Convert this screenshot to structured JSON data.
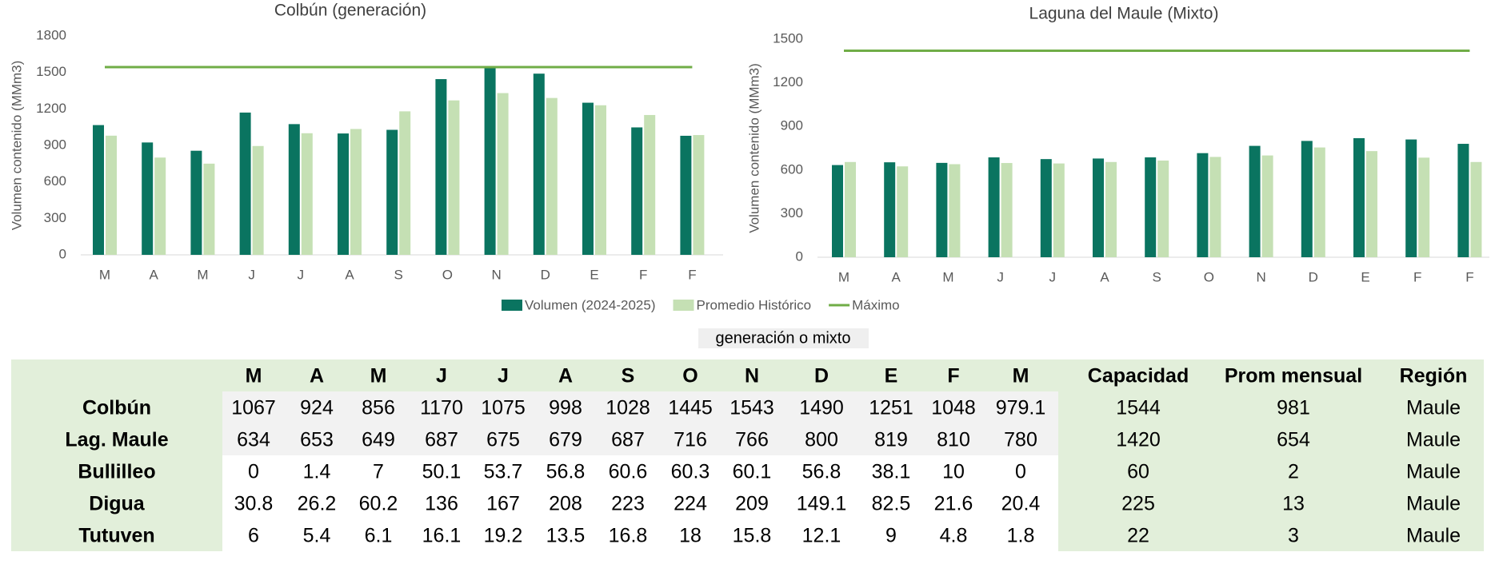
{
  "chart_data": [
    {
      "type": "bar",
      "title": "Colbún (generación)",
      "ylabel": "Volumen contenido (MMm3)",
      "categories": [
        "M",
        "A",
        "M",
        "J",
        "J",
        "A",
        "S",
        "O",
        "N",
        "D",
        "E",
        "F",
        "F"
      ],
      "series": [
        {
          "name": "Volumen (2024-2025)",
          "color": "#0a7460",
          "values": [
            1067,
            924,
            856,
            1170,
            1075,
            998,
            1028,
            1445,
            1543,
            1490,
            1251,
            1048,
            979.1
          ]
        },
        {
          "name": "Promedio Histórico",
          "color": "#c5e0b4",
          "values": [
            980,
            800,
            750,
            895,
            1000,
            1035,
            1180,
            1270,
            1330,
            1290,
            1230,
            1150,
            985
          ]
        },
        {
          "name": "Máximo",
          "color": "#70ad47",
          "type": "line",
          "values": [
            1544,
            1544,
            1544,
            1544,
            1544,
            1544,
            1544,
            1544,
            1544,
            1544,
            1544,
            1544,
            1544
          ]
        }
      ],
      "ylim": [
        0,
        1800
      ],
      "yticks": [
        0,
        300,
        600,
        900,
        1200,
        1500,
        1800
      ]
    },
    {
      "type": "bar",
      "title": "Laguna del Maule (Mixto)",
      "ylabel": "Volumen contenido (MMm3)",
      "categories": [
        "M",
        "A",
        "M",
        "J",
        "J",
        "A",
        "S",
        "O",
        "N",
        "D",
        "E",
        "F",
        "F"
      ],
      "series": [
        {
          "color": "#0a7460",
          "values": [
            634,
            653,
            649,
            687,
            675,
            679,
            687,
            716,
            766,
            800,
            819,
            810,
            780
          ]
        },
        {
          "color": "#c5e0b4",
          "values": [
            655,
            625,
            640,
            648,
            645,
            655,
            665,
            690,
            700,
            755,
            730,
            685,
            655
          ]
        },
        {
          "color": "#70ad47",
          "type": "line",
          "values": [
            1420,
            1420,
            1420,
            1420,
            1420,
            1420,
            1420,
            1420,
            1420,
            1420,
            1420,
            1420,
            1420
          ]
        }
      ],
      "ylim": [
        0,
        1500
      ],
      "yticks": [
        0,
        300,
        600,
        900,
        1200,
        1500
      ]
    }
  ],
  "table": {
    "title": "generación o mixto",
    "header": [
      "M",
      "A",
      "M",
      "J",
      "J",
      "A",
      "S",
      "O",
      "N",
      "D",
      "E",
      "F",
      "M",
      "Capacidad",
      "Prom mensual",
      "Región"
    ],
    "rows": [
      [
        "Colbún",
        1067,
        924,
        856,
        1170,
        1075,
        998,
        1028,
        1445,
        1543,
        1490,
        1251,
        1048,
        979.1,
        1544,
        981,
        "Maule"
      ],
      [
        "Lag. Maule",
        634,
        653,
        649,
        687,
        675,
        679,
        687,
        716,
        766,
        800,
        819,
        810,
        780,
        1420,
        654,
        "Maule"
      ],
      [
        "Bullilleo",
        0,
        1.4,
        7,
        50.1,
        53.7,
        56.8,
        60.6,
        60.3,
        60.1,
        56.8,
        38.1,
        10,
        0,
        60,
        2,
        "Maule"
      ],
      [
        "Digua",
        30.8,
        26.2,
        60.2,
        136,
        167,
        208,
        223,
        224,
        209,
        149.1,
        82.5,
        21.6,
        20.4,
        225,
        13,
        "Maule"
      ],
      [
        "Tutuven",
        6,
        5.4,
        6.1,
        16.1,
        19.2,
        13.5,
        16.8,
        18,
        15.8,
        12.1,
        9,
        4.8,
        1.8,
        22,
        3,
        "Maule"
      ]
    ]
  }
}
